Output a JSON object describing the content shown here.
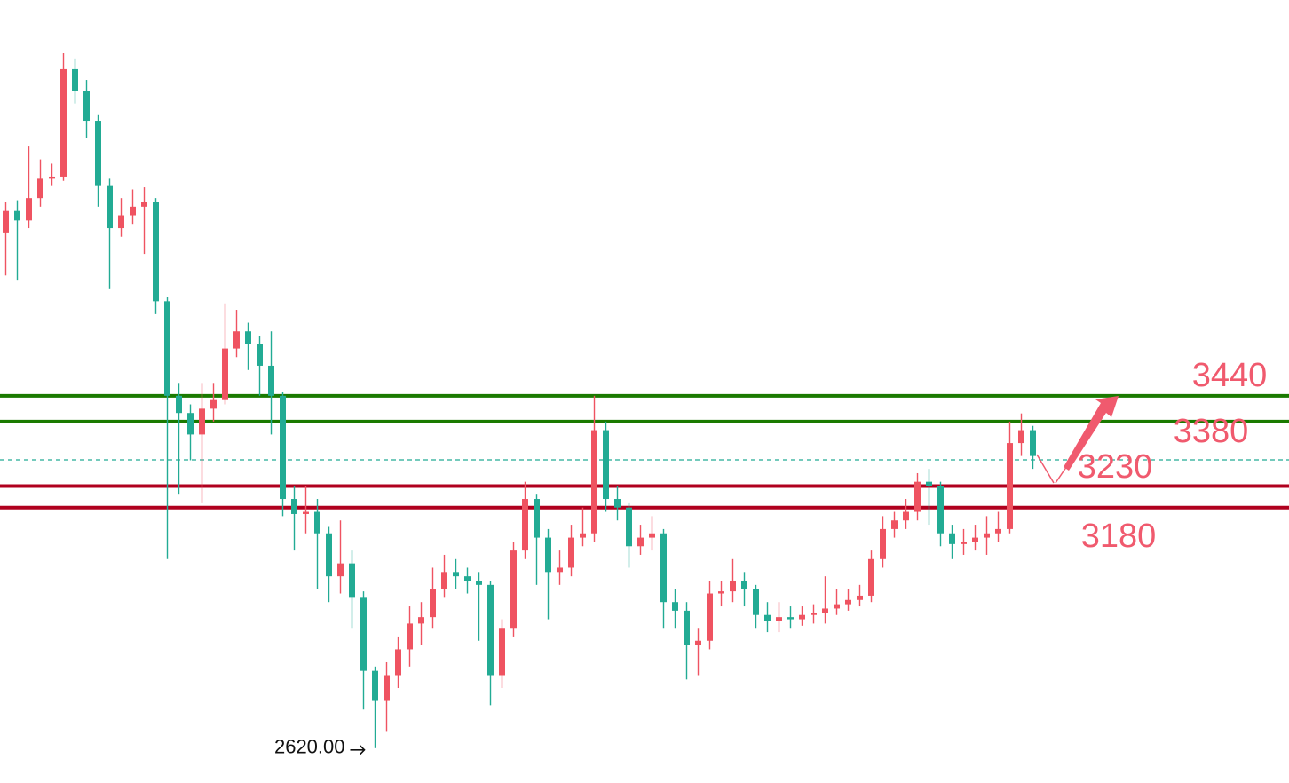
{
  "chart_data": {
    "type": "candlestick",
    "up_color": "#ef5361",
    "down_color": "#22ab94",
    "ylim": [
      2539,
      4361
    ],
    "open": [
      3820,
      3870,
      3848,
      3900,
      3945,
      3950,
      4200,
      4150,
      4080,
      3930,
      3830,
      3860,
      3880,
      3890,
      3660,
      3440,
      3400,
      3350,
      3410,
      3430,
      3550,
      3590,
      3560,
      3510,
      3440,
      3200,
      3165,
      3170,
      3120,
      3020,
      3050,
      2970,
      2800,
      2730,
      2790,
      2850,
      2910,
      2925,
      2990,
      3030,
      3020,
      3010,
      3000,
      2790,
      2900,
      3080,
      3200,
      3110,
      3030,
      3040,
      3110,
      3120,
      3360,
      3200,
      3180,
      3090,
      3110,
      3120,
      2960,
      2940,
      2860,
      2870,
      2980,
      2985,
      3010,
      2990,
      2930,
      2915,
      2925,
      2920,
      2930,
      2935,
      2945,
      2955,
      2965,
      2975,
      3060,
      3130,
      3150,
      3170,
      3240,
      3230,
      3120,
      3095,
      3100,
      3110,
      3120,
      3130,
      3330,
      3360
    ],
    "high": [
      3890,
      3895,
      4020,
      3990,
      3980,
      4237,
      4225,
      4175,
      4095,
      3945,
      3900,
      3920,
      3925,
      3900,
      3670,
      3470,
      3420,
      3470,
      3470,
      3655,
      3640,
      3610,
      3580,
      3590,
      3450,
      3230,
      3230,
      3200,
      3135,
      3150,
      3080,
      2985,
      2810,
      2820,
      2880,
      2950,
      2960,
      3040,
      3070,
      3060,
      3040,
      3030,
      3010,
      2920,
      3100,
      3240,
      3210,
      3130,
      3080,
      3140,
      3180,
      3440,
      3380,
      3230,
      3190,
      3140,
      3160,
      3130,
      2990,
      2960,
      2900,
      3010,
      3010,
      3060,
      3030,
      3000,
      2960,
      2960,
      2950,
      2950,
      2955,
      3020,
      2990,
      2990,
      3000,
      3080,
      3160,
      3170,
      3200,
      3260,
      3270,
      3240,
      3140,
      3130,
      3140,
      3160,
      3170,
      3380,
      3399,
      3370
    ],
    "low": [
      3720,
      3710,
      3830,
      3880,
      3930,
      3940,
      4120,
      4040,
      3880,
      3690,
      3810,
      3840,
      3770,
      3630,
      3060,
      3210,
      3290,
      3190,
      3380,
      3420,
      3530,
      3500,
      3440,
      3350,
      3160,
      3080,
      3120,
      2990,
      2960,
      2980,
      2900,
      2710,
      2620,
      2660,
      2760,
      2810,
      2860,
      2900,
      2970,
      2990,
      2980,
      2870,
      2720,
      2760,
      2880,
      3060,
      3000,
      2920,
      3000,
      3020,
      3090,
      3100,
      3170,
      3150,
      3040,
      3070,
      3080,
      2900,
      2900,
      2780,
      2790,
      2850,
      2950,
      2960,
      2950,
      2900,
      2890,
      2890,
      2900,
      2905,
      2910,
      2910,
      2930,
      2940,
      2950,
      2960,
      3040,
      3110,
      3130,
      3150,
      3140,
      3090,
      3060,
      3070,
      3080,
      3070,
      3100,
      3120,
      3300,
      3270
    ],
    "close": [
      3870,
      3848,
      3900,
      3945,
      3950,
      4200,
      4150,
      4080,
      3930,
      3830,
      3860,
      3880,
      3890,
      3660,
      3440,
      3400,
      3350,
      3410,
      3430,
      3550,
      3590,
      3560,
      3510,
      3440,
      3200,
      3165,
      3170,
      3120,
      3020,
      3050,
      2970,
      2800,
      2730,
      2790,
      2850,
      2910,
      2925,
      2990,
      3030,
      3020,
      3010,
      3000,
      2790,
      2900,
      3080,
      3200,
      3110,
      3030,
      3040,
      3110,
      3120,
      3360,
      3200,
      3180,
      3090,
      3110,
      3120,
      2960,
      2940,
      2860,
      2870,
      2980,
      2985,
      3010,
      2990,
      2930,
      2915,
      2925,
      2920,
      2930,
      2935,
      2945,
      2955,
      2965,
      2975,
      3060,
      3130,
      3150,
      3170,
      3240,
      3230,
      3120,
      3095,
      3100,
      3110,
      3120,
      3130,
      3330,
      3360,
      3300
    ],
    "price_line": {
      "value": 3291,
      "color": "#22ab94"
    },
    "levels": [
      {
        "value": 3440,
        "color": "#1a7a00"
      },
      {
        "value": 3380,
        "color": "#1a7a00"
      },
      {
        "value": 3230,
        "color": "#b0001e"
      },
      {
        "value": 3180,
        "color": "#b0001e"
      }
    ],
    "level_label_color": "#f05a6e",
    "low_marker": {
      "value": 2620,
      "label": "2620.00"
    }
  }
}
